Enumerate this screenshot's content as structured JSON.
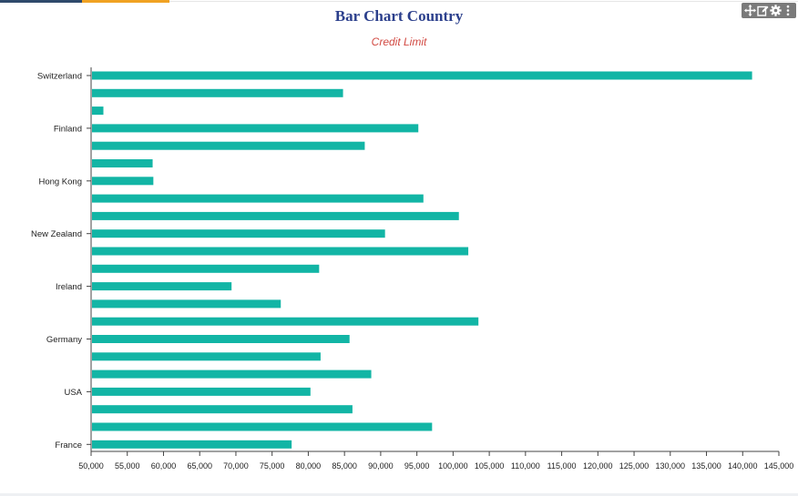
{
  "chart_data": {
    "type": "bar",
    "orientation": "horizontal",
    "title": "Bar Chart Country",
    "subtitle": "Credit Limit",
    "xlabel": "",
    "ylabel": "",
    "xlim": [
      50000,
      145000
    ],
    "x_ticks": [
      "50,000",
      "55,000",
      "60,000",
      "65,000",
      "70,000",
      "75,000",
      "80,000",
      "85,000",
      "90,000",
      "95,000",
      "100,000",
      "105,000",
      "110,000",
      "115,000",
      "120,000",
      "125,000",
      "130,000",
      "135,000",
      "140,000",
      "145,000"
    ],
    "categories": [
      "Switzerland",
      "",
      "",
      "Finland",
      "",
      "",
      "Hong Kong",
      "",
      "",
      "New Zealand",
      "",
      "",
      "Ireland",
      "",
      "",
      "Germany",
      "",
      "",
      "USA",
      "",
      "",
      "France"
    ],
    "values": [
      141300,
      84800,
      51700,
      95200,
      87800,
      58500,
      58600,
      95900,
      100800,
      90600,
      102100,
      81500,
      69400,
      76200,
      103500,
      85700,
      81700,
      88700,
      80300,
      86100,
      97100,
      77700
    ],
    "bar_color": "#12b5a5",
    "grid": false,
    "legend": "none"
  },
  "toolbar": {
    "icons": [
      "move-icon",
      "edit-icon",
      "settings-icon",
      "more-vertical-icon"
    ]
  },
  "colors": {
    "title": "#2b3f8c",
    "subtitle": "#d24a43",
    "stripe_dark": "#2f4a6b",
    "stripe_orange": "#f0a223"
  }
}
